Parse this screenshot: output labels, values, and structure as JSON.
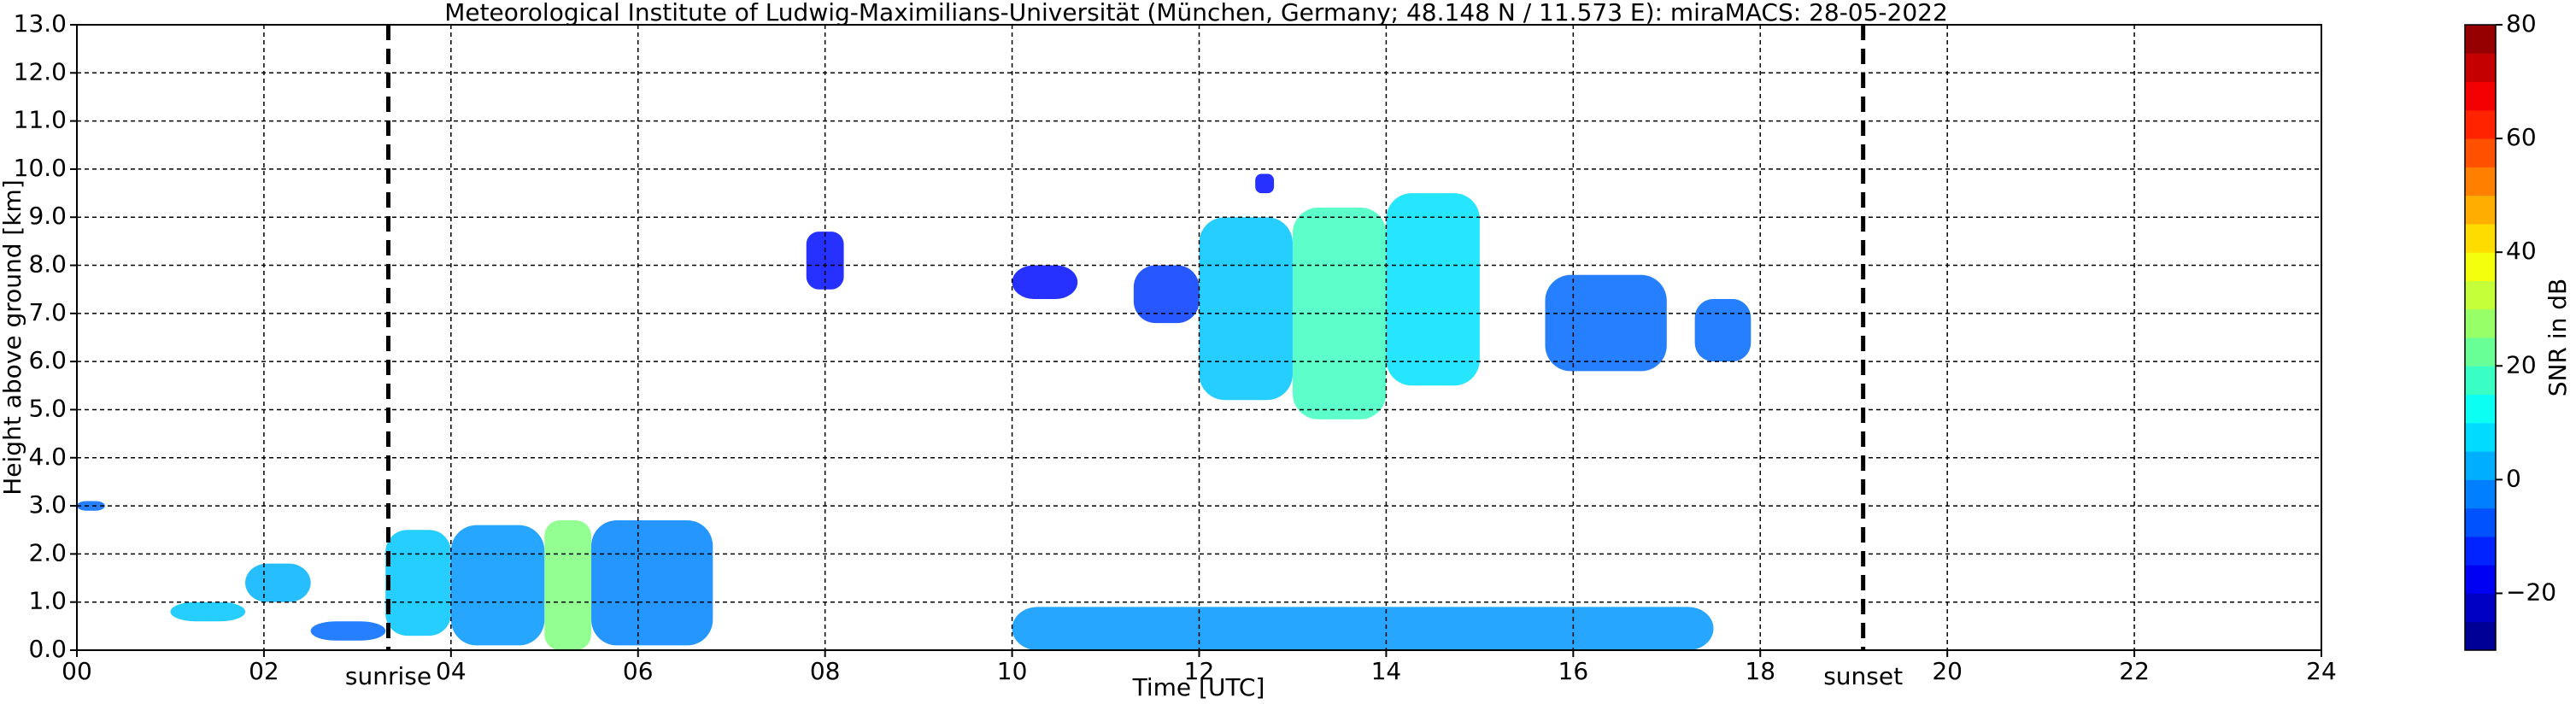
{
  "chart_data": {
    "type": "radar-heatmap",
    "title": "Meteorological Institute of Ludwig-Maximilians-Universität (München, Germany; 48.148 N / 11.573 E):    miraMACS: 28-05-2022",
    "x_label": "Time [UTC]",
    "y_label": "Height above ground [km]",
    "colorbar_label": "SNR in dB",
    "xlim": [
      0,
      24
    ],
    "xticks": [
      {
        "value": 0,
        "label": "00"
      },
      {
        "value": 2,
        "label": "02"
      },
      {
        "value": 4,
        "label": "04"
      },
      {
        "value": 6,
        "label": "06"
      },
      {
        "value": 8,
        "label": "08"
      },
      10,
      12,
      14,
      16,
      18,
      20,
      22,
      24
    ],
    "ylim": [
      0,
      13
    ],
    "yticks": [
      {
        "value": 0,
        "label": "0.0"
      },
      {
        "value": 1,
        "label": "1.0"
      },
      {
        "value": 2,
        "label": "2.0"
      },
      {
        "value": 3,
        "label": "3.0"
      },
      {
        "value": 4,
        "label": "4.0"
      },
      {
        "value": 5,
        "label": "5.0"
      },
      {
        "value": 6,
        "label": "6.0"
      },
      {
        "value": 7,
        "label": "7.0"
      },
      {
        "value": 8,
        "label": "8.0"
      },
      {
        "value": 9,
        "label": "9.0"
      },
      {
        "value": 10,
        "label": "10.0"
      },
      {
        "value": 11,
        "label": "11.0"
      },
      {
        "value": 12,
        "label": "12.0"
      },
      {
        "value": 13,
        "label": "13.0"
      }
    ],
    "clim": [
      -30,
      80
    ],
    "cticks": [
      {
        "value": -20,
        "label": "−20"
      },
      0,
      20,
      40,
      60,
      80
    ],
    "grid": true,
    "markers": [
      {
        "label": "sunrise",
        "x": 3.33
      },
      {
        "label": "sunset",
        "x": 19.1
      }
    ],
    "echoes": [
      {
        "time": [
          0.0,
          0.3
        ],
        "height": [
          2.9,
          3.1
        ],
        "snr": -5
      },
      {
        "time": [
          1.0,
          1.8
        ],
        "height": [
          0.6,
          1.0
        ],
        "snr": 5
      },
      {
        "time": [
          1.8,
          2.5
        ],
        "height": [
          1.0,
          1.8
        ],
        "snr": 3
      },
      {
        "time": [
          2.5,
          3.3
        ],
        "height": [
          0.2,
          0.6
        ],
        "snr": -5
      },
      {
        "time": [
          3.3,
          4.0
        ],
        "height": [
          0.3,
          2.5
        ],
        "snr": 5
      },
      {
        "time": [
          4.0,
          5.0
        ],
        "height": [
          0.1,
          2.6
        ],
        "snr": 0
      },
      {
        "time": [
          5.0,
          5.5
        ],
        "height": [
          0.0,
          2.7
        ],
        "snr": 25
      },
      {
        "time": [
          5.5,
          6.8
        ],
        "height": [
          0.1,
          2.7
        ],
        "snr": -2
      },
      {
        "time": [
          7.8,
          8.2
        ],
        "height": [
          7.5,
          8.7
        ],
        "snr": -15
      },
      {
        "time": [
          10.0,
          10.7
        ],
        "height": [
          7.3,
          8.0
        ],
        "snr": -15
      },
      {
        "time": [
          11.3,
          12.0
        ],
        "height": [
          6.8,
          8.0
        ],
        "snr": -10
      },
      {
        "time": [
          12.0,
          13.0
        ],
        "height": [
          5.2,
          9.0
        ],
        "snr": 5
      },
      {
        "time": [
          13.0,
          14.0
        ],
        "height": [
          4.8,
          9.2
        ],
        "snr": 18
      },
      {
        "time": [
          14.0,
          15.0
        ],
        "height": [
          5.5,
          9.5
        ],
        "snr": 8
      },
      {
        "time": [
          12.6,
          12.8
        ],
        "height": [
          9.5,
          9.9
        ],
        "snr": -15
      },
      {
        "time": [
          15.7,
          17.0
        ],
        "height": [
          5.8,
          7.8
        ],
        "snr": -5
      },
      {
        "time": [
          17.3,
          17.9
        ],
        "height": [
          6.0,
          7.3
        ],
        "snr": -5
      },
      {
        "time": [
          10.0,
          17.5
        ],
        "height": [
          0.0,
          0.9
        ],
        "snr": 0
      }
    ]
  }
}
